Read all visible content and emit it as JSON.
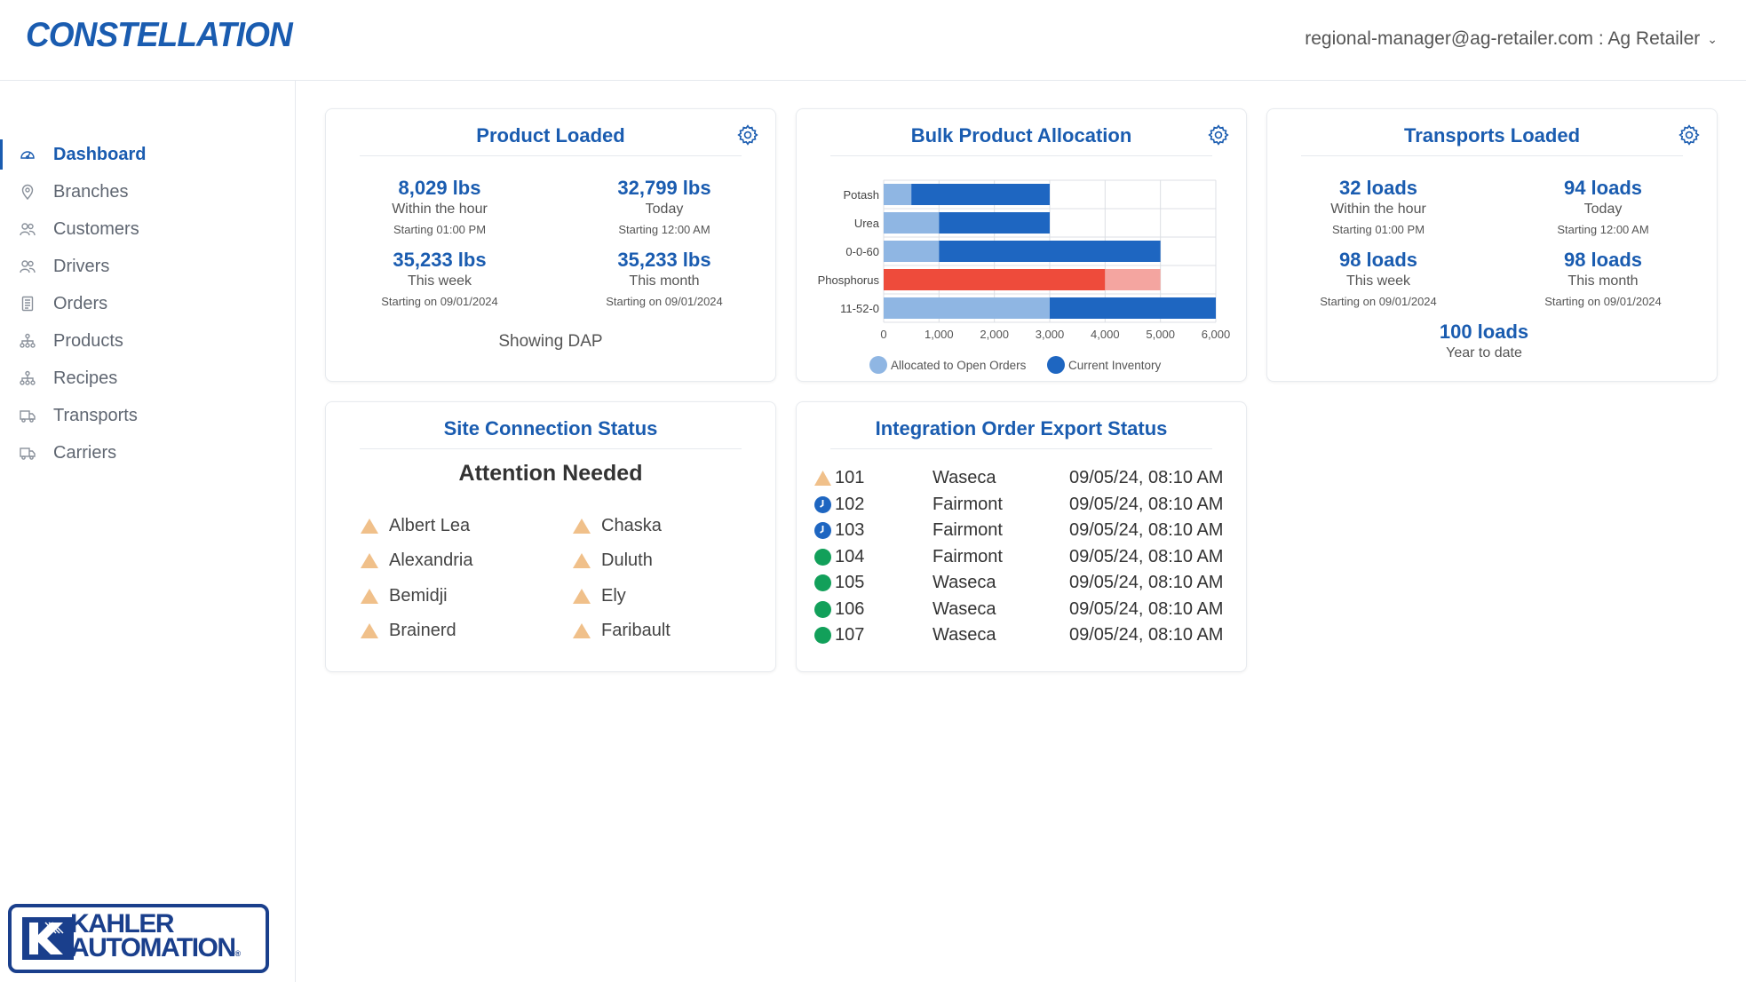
{
  "header": {
    "app_name": "CONSTELLATION",
    "user_label": "regional-manager@ag-retailer.com : Ag Retailer",
    "brand_color": "#1a5cb0"
  },
  "sidebar": {
    "items": [
      {
        "label": "Dashboard",
        "icon": "dashboard-gauge-icon",
        "active": true
      },
      {
        "label": "Branches",
        "icon": "location-pin-icon"
      },
      {
        "label": "Customers",
        "icon": "users-icon"
      },
      {
        "label": "Drivers",
        "icon": "users-icon"
      },
      {
        "label": "Orders",
        "icon": "receipt-icon"
      },
      {
        "label": "Products",
        "icon": "hierarchy-icon"
      },
      {
        "label": "Recipes",
        "icon": "hierarchy-icon"
      },
      {
        "label": "Transports",
        "icon": "truck-icon"
      },
      {
        "label": "Carriers",
        "icon": "truck-icon"
      }
    ],
    "footer_logo": "KAHLER AUTOMATION"
  },
  "product_loaded": {
    "title": "Product Loaded",
    "stats": [
      {
        "value": "8,029 lbs",
        "label": "Within the hour",
        "sub": "Starting 01:00 PM"
      },
      {
        "value": "32,799 lbs",
        "label": "Today",
        "sub": "Starting 12:00 AM"
      },
      {
        "value": "35,233 lbs",
        "label": "This week",
        "sub": "Starting on 09/01/2024"
      },
      {
        "value": "35,233 lbs",
        "label": "This month",
        "sub": "Starting on 09/01/2024"
      }
    ],
    "showing": "Showing DAP"
  },
  "bulk_allocation": {
    "title": "Bulk Product Allocation"
  },
  "chart_data": {
    "type": "bar",
    "orientation": "horizontal",
    "title": "Bulk Product Allocation",
    "categories": [
      "Potash",
      "Urea",
      "0-0-60",
      "Phosphorus",
      "11-52-0"
    ],
    "series": [
      {
        "name": "Allocated to Open Orders",
        "values": [
          500,
          1000,
          1000,
          4000,
          3000
        ],
        "color": "#8fb6e3"
      },
      {
        "name": "Current Inventory",
        "values": [
          3000,
          3000,
          5000,
          5000,
          6000
        ],
        "color": "#1e66c1"
      }
    ],
    "highlight": {
      "category": "Phosphorus",
      "colors": [
        "#ee4b3b",
        "#f4a5a0"
      ]
    },
    "xlim": [
      0,
      6000
    ],
    "xticks": [
      "0",
      "1,000",
      "2,000",
      "3,000",
      "4,000",
      "5,000",
      "6,000"
    ],
    "legend": [
      "Allocated to Open Orders",
      "Current Inventory"
    ],
    "legend_position": "bottom",
    "grid": true
  },
  "transports_loaded": {
    "title": "Transports Loaded",
    "stats": [
      {
        "value": "32 loads",
        "label": "Within the hour",
        "sub": "Starting 01:00 PM"
      },
      {
        "value": "94 loads",
        "label": "Today",
        "sub": "Starting 12:00 AM"
      },
      {
        "value": "98 loads",
        "label": "This week",
        "sub": "Starting on 09/01/2024"
      },
      {
        "value": "98 loads",
        "label": "This month",
        "sub": "Starting on 09/01/2024"
      },
      {
        "value": "100 loads",
        "label": "Year to date"
      }
    ]
  },
  "site_status": {
    "title": "Site Connection Status",
    "headline": "Attention Needed",
    "sites": [
      "Albert Lea",
      "Chaska",
      "Alexandria",
      "Duluth",
      "Bemidji",
      "Ely",
      "Brainerd",
      "Faribault"
    ]
  },
  "integration": {
    "title": "Integration Order Export Status",
    "rows": [
      {
        "status": "warning",
        "id": "101",
        "location": "Waseca",
        "time": "09/05/24, 08:10 AM"
      },
      {
        "status": "pending",
        "id": "102",
        "location": "Fairmont",
        "time": "09/05/24, 08:10 AM"
      },
      {
        "status": "pending",
        "id": "103",
        "location": "Fairmont",
        "time": "09/05/24, 08:10 AM"
      },
      {
        "status": "success",
        "id": "104",
        "location": "Fairmont",
        "time": "09/05/24, 08:10 AM"
      },
      {
        "status": "success",
        "id": "105",
        "location": "Waseca",
        "time": "09/05/24, 08:10 AM"
      },
      {
        "status": "success",
        "id": "106",
        "location": "Waseca",
        "time": "09/05/24, 08:10 AM"
      },
      {
        "status": "success",
        "id": "107",
        "location": "Waseca",
        "time": "09/05/24, 08:10 AM"
      }
    ]
  }
}
